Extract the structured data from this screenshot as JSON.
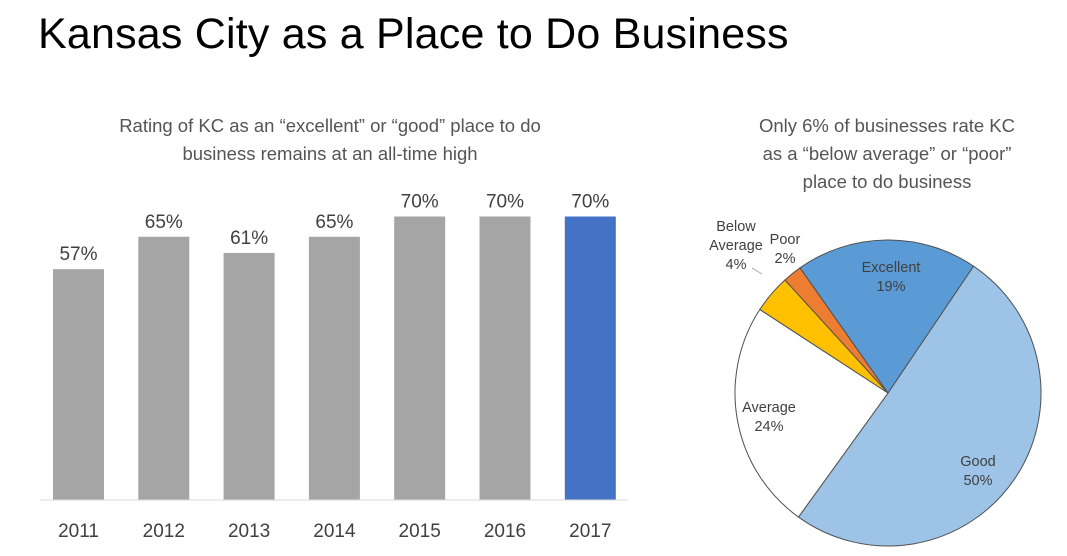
{
  "title": "Kansas City as a Place to Do Business",
  "chart_data": [
    {
      "type": "bar",
      "title": "Rating of KC as an “excellent” or “good” place to do business remains at an all-time high",
      "title_lines": [
        "Rating of KC as an “excellent” or “good” place to do",
        "business remains at an all-time high"
      ],
      "categories": [
        "2011",
        "2012",
        "2013",
        "2014",
        "2015",
        "2016",
        "2017"
      ],
      "values": [
        57,
        65,
        61,
        65,
        70,
        70,
        70
      ],
      "value_labels": [
        "57%",
        "65%",
        "61%",
        "65%",
        "70%",
        "70%",
        "70%"
      ],
      "unit": "%",
      "ylim": [
        0,
        100
      ],
      "colors": [
        "#A5A5A5",
        "#A5A5A5",
        "#A5A5A5",
        "#A5A5A5",
        "#A5A5A5",
        "#A5A5A5",
        "#4472C4"
      ],
      "xlabel": "",
      "ylabel": "",
      "grid": false,
      "legend": "none"
    },
    {
      "type": "pie",
      "title": "Only 6% of businesses rate KC as a “below average” or “poor” place to do business",
      "title_lines": [
        "Only 6% of businesses rate KC",
        "as a “below average” or “poor”",
        "place to do business"
      ],
      "slices": [
        {
          "label": "Excellent",
          "value": 19,
          "value_label": "19%",
          "color": "#5B9BD5"
        },
        {
          "label": "Good",
          "value": 50,
          "value_label": "50%",
          "color": "#9DC3E6"
        },
        {
          "label": "Average",
          "value": 24,
          "value_label": "24%",
          "color": "#FFFFFF"
        },
        {
          "label": "Below Average",
          "value": 4,
          "value_label": "4%",
          "color": "#FFC000"
        },
        {
          "label": "Poor",
          "value": 2,
          "value_label": "2%",
          "color": "#ED7D31"
        }
      ],
      "legend": "none"
    }
  ]
}
